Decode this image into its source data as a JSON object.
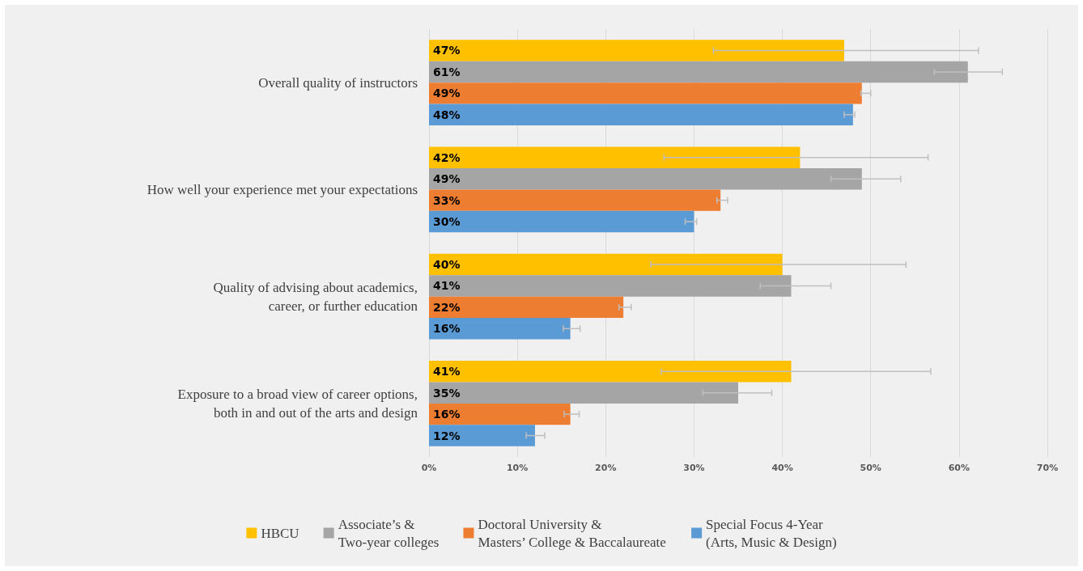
{
  "chart_data": {
    "type": "bar",
    "orientation": "horizontal",
    "categories": [
      "Overall quality of instructors",
      "How well your experience met your expectations",
      "Quality of advising about academics,\ncareer, or further education",
      "Exposure to a broad view of career options,\nboth in and out of the arts and design"
    ],
    "series": [
      {
        "name": "HBCU",
        "color": "#ffc000",
        "values": [
          47,
          42,
          40,
          41
        ],
        "value_labels": [
          "47%",
          "42%",
          "40%",
          "41%"
        ],
        "errors": [
          [
            32.2,
            62.2
          ],
          [
            26.6,
            56.5
          ],
          [
            25.1,
            54.0
          ],
          [
            26.3,
            56.8
          ]
        ]
      },
      {
        "name": "Associate’s &\nTwo-year colleges",
        "color": "#a5a5a5",
        "values": [
          61,
          49,
          41,
          35
        ],
        "value_labels": [
          "61%",
          "49%",
          "41%",
          "35%"
        ],
        "errors": [
          [
            57.2,
            64.9
          ],
          [
            45.5,
            53.4
          ],
          [
            37.5,
            45.5
          ],
          [
            31.0,
            38.8
          ]
        ]
      },
      {
        "name": "Doctoral University &\nMasters’ College & Baccalaureate",
        "color": "#ed7d31",
        "values": [
          49,
          33,
          22,
          16
        ],
        "value_labels": [
          "49%",
          "33%",
          "22%",
          "16%"
        ],
        "errors": [
          [
            48.9,
            50.0
          ],
          [
            32.6,
            33.8
          ],
          [
            21.5,
            22.9
          ],
          [
            15.3,
            17.0
          ]
        ]
      },
      {
        "name": "Special Focus 4-Year\n(Arts, Music & Design)",
        "color": "#5b9bd5",
        "values": [
          48,
          30,
          16,
          12
        ],
        "value_labels": [
          "48%",
          "30%",
          "16%",
          "12%"
        ],
        "errors": [
          [
            47.0,
            48.2
          ],
          [
            29.0,
            30.3
          ],
          [
            15.2,
            17.1
          ],
          [
            11.0,
            13.1
          ]
        ]
      }
    ],
    "xlim": [
      0,
      70
    ],
    "xticks": [
      {
        "value": 0,
        "label": "0%"
      },
      {
        "value": 10,
        "label": "10%"
      },
      {
        "value": 20,
        "label": "20%"
      },
      {
        "value": 30,
        "label": "30%"
      },
      {
        "value": 40,
        "label": "40%"
      },
      {
        "value": 50,
        "label": "50%"
      },
      {
        "value": 60,
        "label": "60%"
      },
      {
        "value": 70,
        "label": "70%"
      }
    ],
    "grid": "x",
    "legend": "bottom"
  }
}
